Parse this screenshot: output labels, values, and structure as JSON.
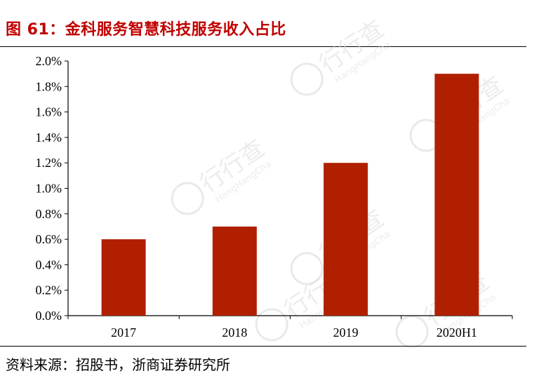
{
  "title": "图 61：金科服务智慧科技服务收入占比",
  "source": "资料来源：招股书，浙商证券研究所",
  "watermark": {
    "main": "行行查",
    "sub": "HangHangCha"
  },
  "colors": {
    "title": "#c00000",
    "bar": "#b02000"
  },
  "chart_data": {
    "type": "bar",
    "categories": [
      "2017",
      "2018",
      "2019",
      "2020H1"
    ],
    "values": [
      0.006,
      0.007,
      0.012,
      0.019
    ],
    "ylim": [
      0,
      0.02
    ],
    "yticks": [
      0.0,
      0.002,
      0.004,
      0.006,
      0.008,
      0.01,
      0.012,
      0.014,
      0.016,
      0.018,
      0.02
    ],
    "ytick_labels": [
      "0.0%",
      "0.2%",
      "0.4%",
      "0.6%",
      "0.8%",
      "1.0%",
      "1.2%",
      "1.4%",
      "1.6%",
      "1.8%",
      "2.0%"
    ],
    "title": "",
    "xlabel": "",
    "ylabel": "",
    "grid": false,
    "legend": "none"
  }
}
